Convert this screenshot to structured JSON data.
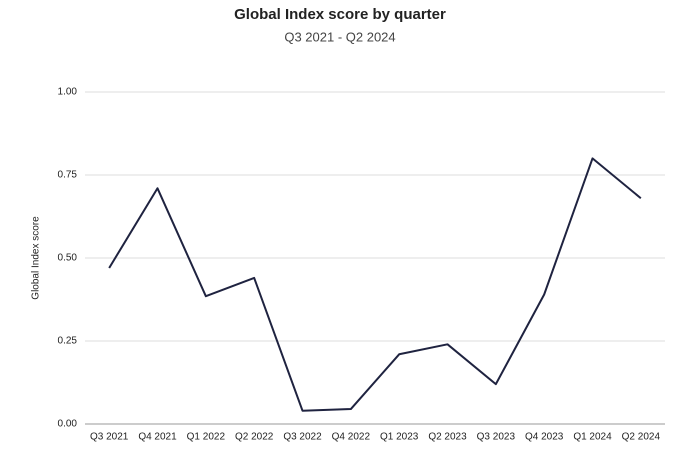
{
  "chart_data": {
    "type": "line",
    "title": "Global Index score by quarter",
    "subtitle": "Q3 2021 - Q2 2024",
    "y_label": "Global Index score",
    "categories": [
      "Q3 2021",
      "Q4 2021",
      "Q1 2022",
      "Q2 2022",
      "Q3 2022",
      "Q4 2022",
      "Q1 2023",
      "Q2 2023",
      "Q3 2023",
      "Q4 2023",
      "Q1 2024",
      "Q2 2024"
    ],
    "values": [
      0.47,
      0.71,
      0.385,
      0.44,
      0.04,
      0.045,
      0.21,
      0.24,
      0.12,
      0.39,
      0.8,
      0.68
    ],
    "color": "#1f2340",
    "ylim": [
      0,
      1
    ],
    "yticks": [
      {
        "value": 0,
        "label": "0.00"
      },
      {
        "value": 0.25,
        "label": "0.25"
      },
      {
        "value": 0.5,
        "label": "0.50"
      },
      {
        "value": 0.75,
        "label": "0.75"
      },
      {
        "value": 1,
        "label": "1.00"
      }
    ],
    "grid": true
  }
}
